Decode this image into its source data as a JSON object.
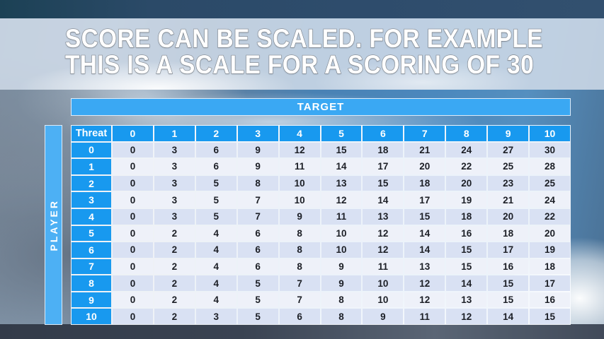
{
  "slide": {
    "title_line1": "SCORE CAN BE SCALED. FOR EXAMPLE",
    "title_line2": "THIS IS A SCALE FOR A SCORING OF 30"
  },
  "table": {
    "target_label": "TARGET",
    "player_label": "PLAYER",
    "corner_label": "Threat",
    "column_headers": [
      "0",
      "1",
      "2",
      "3",
      "4",
      "5",
      "6",
      "7",
      "8",
      "9",
      "10"
    ],
    "rows": [
      {
        "threat": "0",
        "values": [
          0,
          3,
          6,
          9,
          12,
          15,
          18,
          21,
          24,
          27,
          30
        ]
      },
      {
        "threat": "1",
        "values": [
          0,
          3,
          6,
          9,
          11,
          14,
          17,
          20,
          22,
          25,
          28
        ]
      },
      {
        "threat": "2",
        "values": [
          0,
          3,
          5,
          8,
          10,
          13,
          15,
          18,
          20,
          23,
          25
        ]
      },
      {
        "threat": "3",
        "values": [
          0,
          3,
          5,
          7,
          10,
          12,
          14,
          17,
          19,
          21,
          24
        ]
      },
      {
        "threat": "4",
        "values": [
          0,
          3,
          5,
          7,
          9,
          11,
          13,
          15,
          18,
          20,
          22
        ]
      },
      {
        "threat": "5",
        "values": [
          0,
          2,
          4,
          6,
          8,
          10,
          12,
          14,
          16,
          18,
          20
        ]
      },
      {
        "threat": "6",
        "values": [
          0,
          2,
          4,
          6,
          8,
          10,
          12,
          14,
          15,
          17,
          19
        ]
      },
      {
        "threat": "7",
        "values": [
          0,
          2,
          4,
          6,
          8,
          9,
          11,
          13,
          15,
          16,
          18
        ]
      },
      {
        "threat": "8",
        "values": [
          0,
          2,
          4,
          5,
          7,
          9,
          10,
          12,
          14,
          15,
          17
        ]
      },
      {
        "threat": "9",
        "values": [
          0,
          2,
          4,
          5,
          7,
          8,
          10,
          12,
          13,
          15,
          16
        ]
      },
      {
        "threat": "10",
        "values": [
          0,
          2,
          3,
          5,
          6,
          8,
          9,
          11,
          12,
          14,
          15
        ]
      }
    ]
  },
  "colors": {
    "header_blue": "#1899ef",
    "target_bar_blue": "#3aa8f3",
    "player_bar_blue": "#4db0f4",
    "row_shade_dark": "#d9e1f3",
    "row_shade_light": "#eef1f9",
    "number_text": "#1c1f26"
  }
}
